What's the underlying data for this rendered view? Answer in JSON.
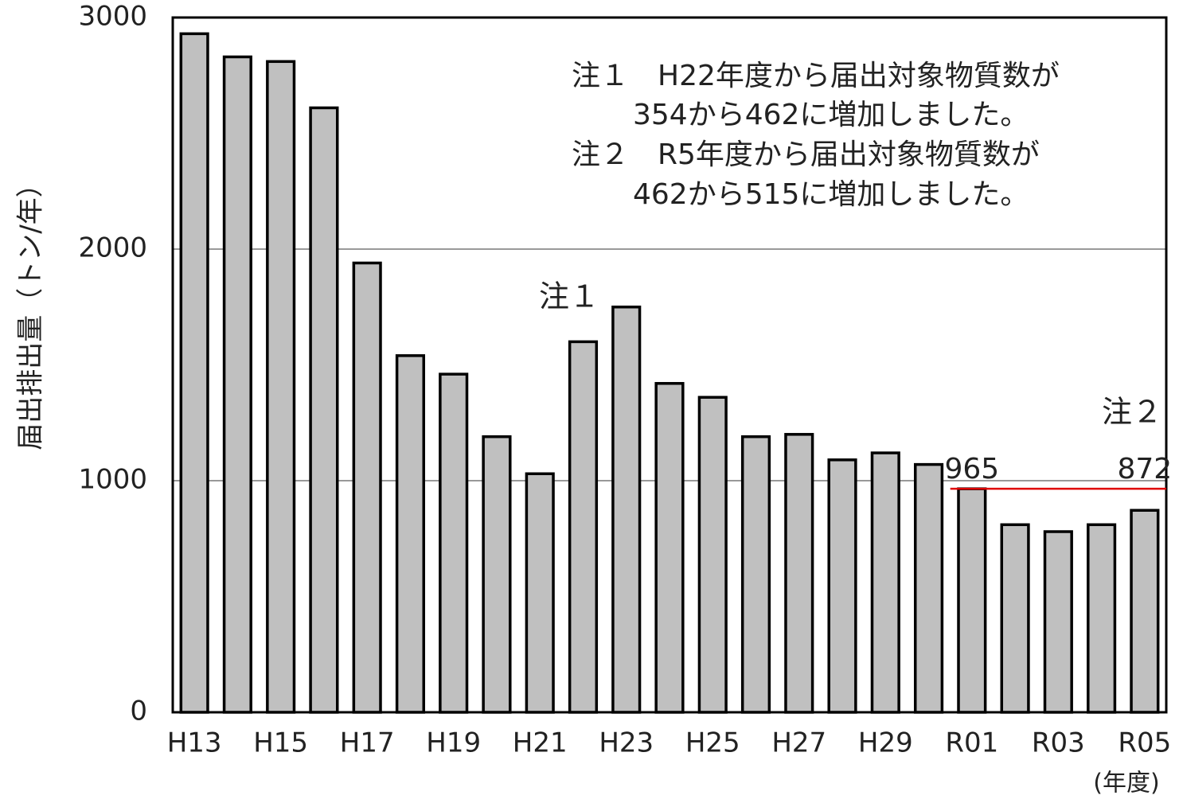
{
  "chart_data": {
    "type": "bar",
    "y_label": "届出排出量（トン/年）",
    "x_label": "(年度)",
    "categories": [
      "H13",
      null,
      "H15",
      null,
      "H17",
      null,
      "H19",
      null,
      "H21",
      null,
      "H23",
      null,
      "H25",
      null,
      "H27",
      null,
      "H29",
      null,
      "R01",
      null,
      "R03",
      null,
      "R05"
    ],
    "values": [
      2930,
      2830,
      2810,
      2610,
      1940,
      1540,
      1460,
      1190,
      1030,
      1600,
      1750,
      1420,
      1360,
      1190,
      1200,
      1090,
      1120,
      1070,
      965,
      810,
      780,
      810,
      872
    ],
    "value_labels": [
      null,
      null,
      null,
      null,
      null,
      null,
      null,
      null,
      null,
      null,
      null,
      null,
      null,
      null,
      null,
      null,
      null,
      null,
      "965",
      null,
      null,
      null,
      "872"
    ],
    "color": "#c0c0c0",
    "reference_line_color": "#e00000",
    "ylim": [
      0,
      3000
    ],
    "yticks": [
      0,
      1000,
      2000,
      3000
    ],
    "grid": true,
    "notes": [
      "注１　H22年度から届出対象物質数が",
      "354から462に増加しました。",
      "注２　R5年度から届出対象物質数が",
      "462から515に増加しました。"
    ],
    "markers": [
      "注１",
      "注２"
    ]
  }
}
